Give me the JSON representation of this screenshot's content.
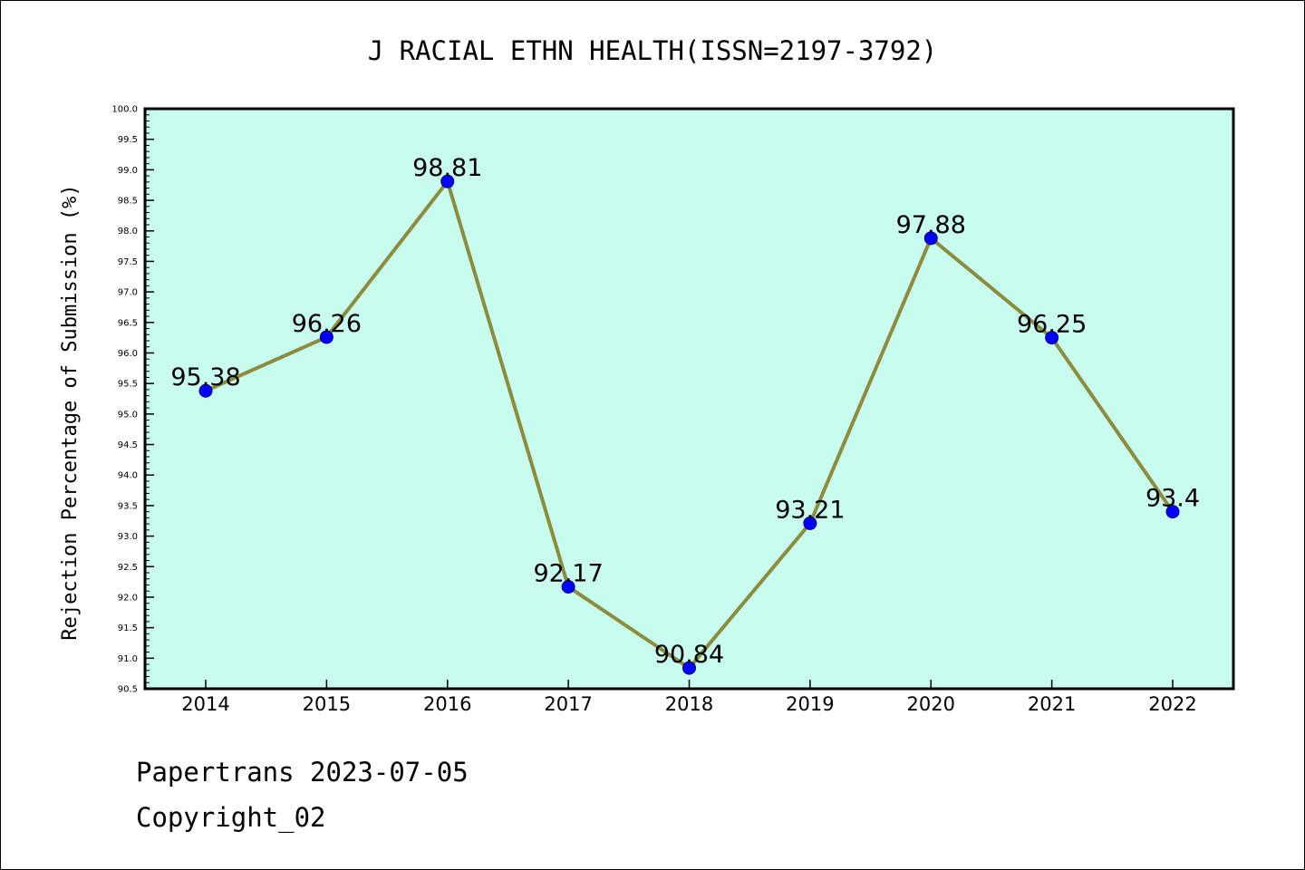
{
  "footer": {
    "line1": "Papertrans 2023-07-05",
    "line2": "Copyright_02"
  },
  "colors": {
    "plot_background": "#c8fcee",
    "line": "#8c8c3c",
    "marker": "#0000ff",
    "axis": "#000000"
  },
  "chart_data": {
    "type": "line",
    "title": "J RACIAL ETHN HEALTH(ISSN=2197-3792)",
    "xlabel": "",
    "ylabel": "Rejection Percentage of Submission (%)",
    "categories": [
      "2014",
      "2015",
      "2016",
      "2017",
      "2018",
      "2019",
      "2020",
      "2021",
      "2022"
    ],
    "series": [
      {
        "values": [
          95.38,
          96.26,
          98.81,
          92.17,
          90.84,
          93.21,
          97.88,
          96.25,
          93.4
        ],
        "data_labels": [
          "95.38",
          "96.26",
          "98.81",
          "92.17",
          "90.84",
          "93.21",
          "97.88",
          "96.25",
          "93.4"
        ]
      }
    ],
    "ylim": [
      90.5,
      100.0
    ],
    "yticks": [
      "90.5",
      "91.0",
      "91.5",
      "92.0",
      "92.5",
      "93.0",
      "93.5",
      "94.0",
      "94.5",
      "95.0",
      "95.5",
      "96.0",
      "96.5",
      "97.0",
      "97.5",
      "98.0",
      "98.5",
      "99.0",
      "99.5",
      "100.0"
    ],
    "grid": false,
    "legend": "none"
  }
}
